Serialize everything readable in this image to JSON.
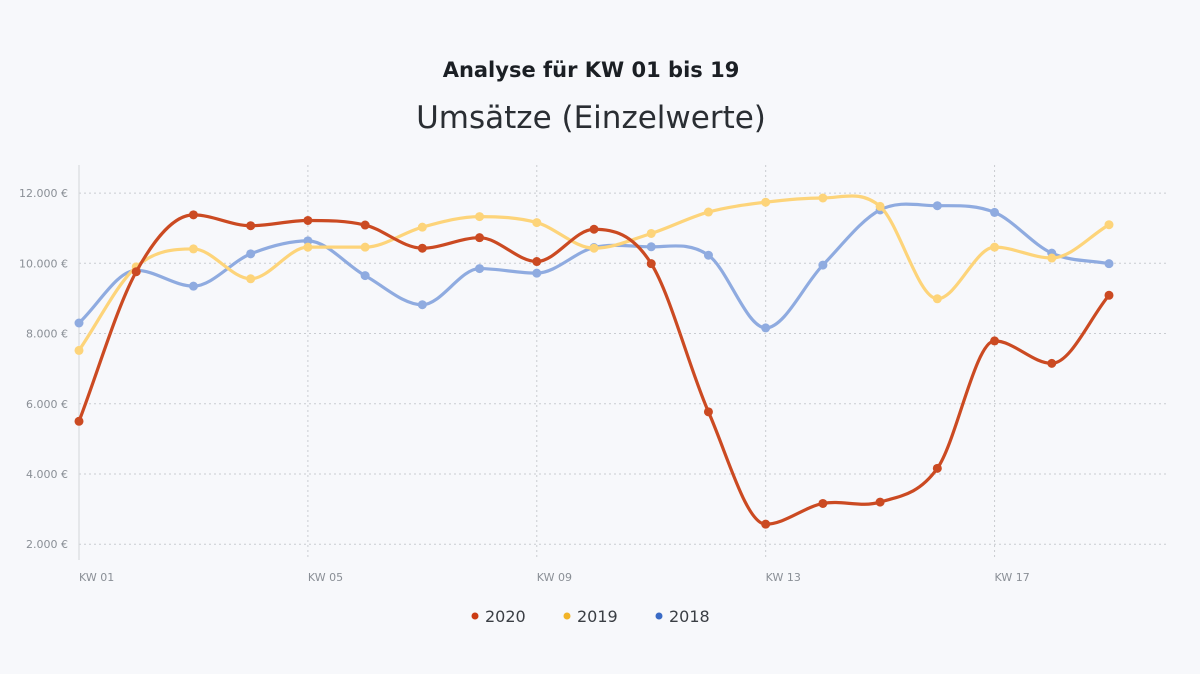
{
  "chart_data": {
    "type": "line",
    "title": "Analyse für KW 01 bis 19",
    "subtitle": "Umsätze (Einzelwerte)",
    "xlabel": "",
    "ylabel": "",
    "ylim": [
      2000,
      12800
    ],
    "y_ticks": [
      {
        "value": 2000,
        "label": "2.000 €"
      },
      {
        "value": 4000,
        "label": "4.000 €"
      },
      {
        "value": 6000,
        "label": "6.000 €"
      },
      {
        "value": 8000,
        "label": "8.000 €"
      },
      {
        "value": 10000,
        "label": "10.000 €"
      },
      {
        "value": 12000,
        "label": "12.000 €"
      }
    ],
    "x": [
      1,
      2,
      3,
      4,
      5,
      6,
      7,
      8,
      9,
      10,
      11,
      12,
      13,
      14,
      15,
      16,
      17,
      18,
      19
    ],
    "x_ticks": [
      {
        "value": 1,
        "label": "KW 01"
      },
      {
        "value": 5,
        "label": "KW 05"
      },
      {
        "value": 9,
        "label": "KW 09"
      },
      {
        "value": 13,
        "label": "KW 13"
      },
      {
        "value": 17,
        "label": "KW 17"
      }
    ],
    "grid": true,
    "legend_position": "bottom-center",
    "series": [
      {
        "name": "2018",
        "color": "#8fabe0",
        "values": [
          8300,
          9800,
          9350,
          10270,
          10640,
          9650,
          8820,
          9850,
          9720,
          10450,
          10470,
          10230,
          8160,
          9950,
          11520,
          11640,
          11450,
          10290,
          9990
        ]
      },
      {
        "name": "2019",
        "color": "#fdd47a",
        "values": [
          7520,
          9900,
          10410,
          9560,
          10460,
          10460,
          11030,
          11330,
          11160,
          10430,
          10850,
          11460,
          11740,
          11860,
          11620,
          8990,
          10460,
          10150,
          11100
        ]
      },
      {
        "name": "2020",
        "color": "#cb4a22",
        "values": [
          5500,
          9760,
          11380,
          11070,
          11220,
          11090,
          10430,
          10730,
          10050,
          10970,
          9990,
          5770,
          2570,
          3160,
          3200,
          4160,
          7790,
          7150,
          9090
        ]
      }
    ],
    "legend": [
      {
        "name": "2020",
        "color": "#cb4a22",
        "marker_color": "#cb3c14"
      },
      {
        "name": "2019",
        "color": "#fdd47a",
        "marker_color": "#f2b428"
      },
      {
        "name": "2018",
        "color": "#8fabe0",
        "marker_color": "#3a6bc6"
      }
    ]
  }
}
